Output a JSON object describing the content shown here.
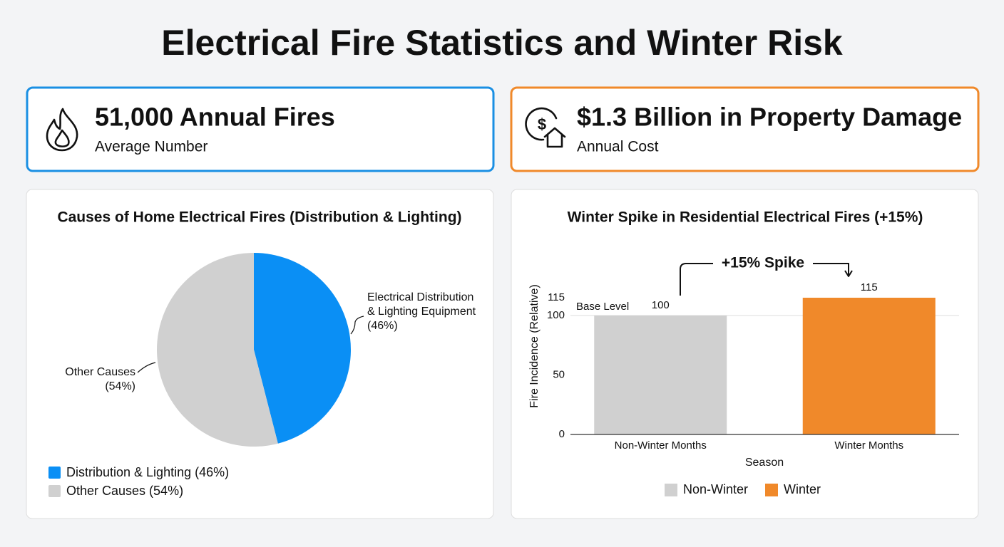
{
  "title": "Electrical Fire Statistics and Winter Risk",
  "cards": [
    {
      "headline": "51,000 Annual Fires",
      "caption": "Average Number",
      "color": "#1a8fe3"
    },
    {
      "headline": "$1.3 Billion in Property Damage",
      "caption": "Annual Cost",
      "color": "#f0892a"
    }
  ],
  "chart_data": [
    {
      "type": "pie",
      "title": "Causes of Home Electrical Fires (Distribution & Lighting)",
      "categories": [
        "Distribution & Lighting (46%)",
        "Other Causes (54%)"
      ],
      "values": [
        46,
        54
      ],
      "value_labels": [
        [
          "Electrical Distribution",
          "& Lighting Equipment",
          "(46%)"
        ],
        [
          "Other Causes",
          "(54%)"
        ]
      ],
      "colors": [
        "#0a8ff5",
        "#d0d0d0"
      ]
    },
    {
      "type": "bar",
      "title": "Winter Spike in Residential Electrical Fires (+15%)",
      "categories": [
        "Non-Winter Months",
        "Winter Months"
      ],
      "series": [
        {
          "name": "Non-Winter",
          "color": "#d0d0d0",
          "values": [
            100,
            null
          ]
        },
        {
          "name": "Winter",
          "color": "#f0892a",
          "values": [
            null,
            115
          ]
        }
      ],
      "ylim": [
        0,
        115
      ],
      "yticks": [
        0,
        50,
        100,
        115
      ],
      "ylabel": "Fire Incidence (Relative)",
      "xlabel": "Season",
      "reference_line": {
        "value": 100,
        "label": "Base Level"
      },
      "annotation": "+15% Spike"
    }
  ]
}
